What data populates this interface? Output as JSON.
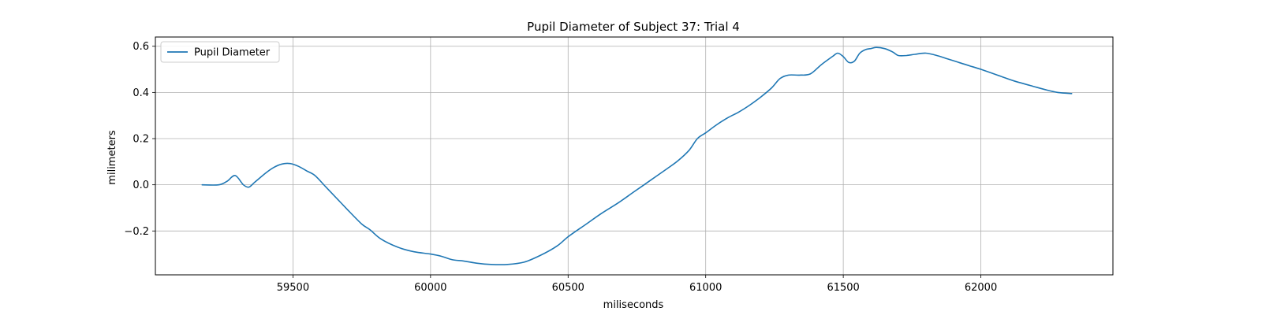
{
  "chart_data": {
    "type": "line",
    "title": "Pupil Diameter of Subject 37: Trial 4",
    "xlabel": "miliseconds",
    "ylabel": "milimeters",
    "xlim": [
      59000,
      62480
    ],
    "ylim": [
      -0.39,
      0.64
    ],
    "xticks": [
      59500,
      60000,
      60500,
      61000,
      61500,
      62000
    ],
    "yticks": [
      -0.2,
      0.0,
      0.2,
      0.4,
      0.6
    ],
    "ytick_labels": [
      "−0.2",
      "0.0",
      "0.2",
      "0.4",
      "0.6"
    ],
    "grid": true,
    "legend_position": "upper-left",
    "series": [
      {
        "name": "Pupil Diameter",
        "color": "#1f77b4",
        "x": [
          59170,
          59230,
          59260,
          59290,
          59320,
          59340,
          59360,
          59400,
          59430,
          59460,
          59490,
          59520,
          59550,
          59580,
          59620,
          59660,
          59700,
          59750,
          59780,
          59820,
          59880,
          59940,
          60000,
          60040,
          60080,
          60120,
          60170,
          60220,
          60280,
          60340,
          60400,
          60460,
          60500,
          60560,
          60620,
          60680,
          60740,
          60800,
          60860,
          60900,
          60940,
          60970,
          61000,
          61040,
          61080,
          61120,
          61160,
          61200,
          61240,
          61270,
          61300,
          61340,
          61380,
          61420,
          61460,
          61480,
          61500,
          61520,
          61540,
          61560,
          61580,
          61600,
          61620,
          61650,
          61680,
          61700,
          61730,
          61760,
          61800,
          61840,
          61880,
          61920,
          61960,
          62000,
          62060,
          62120,
          62180,
          62240,
          62280,
          62330
        ],
        "y": [
          0.0,
          0.0,
          0.015,
          0.04,
          0.0,
          -0.01,
          0.01,
          0.05,
          0.075,
          0.09,
          0.092,
          0.08,
          0.06,
          0.04,
          -0.01,
          -0.06,
          -0.11,
          -0.17,
          -0.195,
          -0.235,
          -0.27,
          -0.29,
          -0.3,
          -0.31,
          -0.325,
          -0.33,
          -0.34,
          -0.345,
          -0.345,
          -0.335,
          -0.305,
          -0.265,
          -0.225,
          -0.175,
          -0.125,
          -0.08,
          -0.03,
          0.02,
          0.07,
          0.105,
          0.15,
          0.2,
          0.225,
          0.26,
          0.29,
          0.315,
          0.345,
          0.38,
          0.42,
          0.46,
          0.475,
          0.475,
          0.48,
          0.52,
          0.555,
          0.57,
          0.555,
          0.53,
          0.535,
          0.57,
          0.585,
          0.59,
          0.595,
          0.59,
          0.575,
          0.56,
          0.56,
          0.565,
          0.57,
          0.56,
          0.545,
          0.53,
          0.515,
          0.5,
          0.475,
          0.45,
          0.43,
          0.41,
          0.4,
          0.395
        ]
      }
    ]
  }
}
